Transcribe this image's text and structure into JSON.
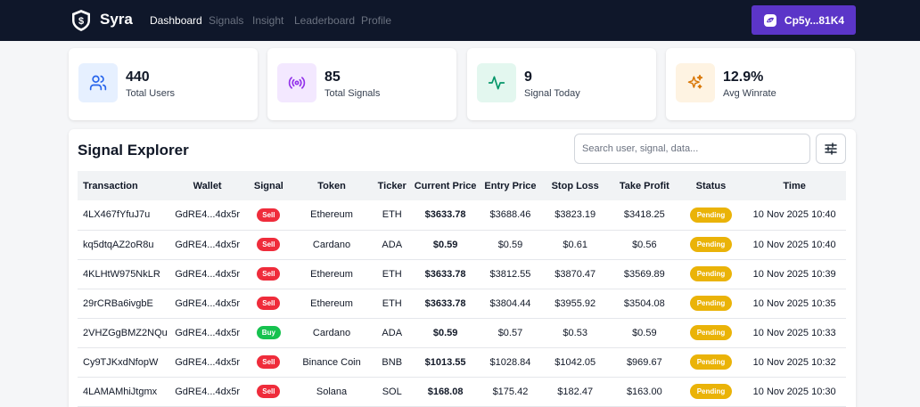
{
  "header": {
    "brand": "Syra",
    "nav": [
      "Dashboard",
      "Signals",
      "Insight",
      "Leaderboard",
      "Profile"
    ],
    "active_nav": "Dashboard",
    "wallet_label": "Cp5y...81K4"
  },
  "stats": [
    {
      "value": "440",
      "label": "Total Users",
      "icon": "users-icon",
      "color": "#2563eb",
      "bg": "#e6f0ff"
    },
    {
      "value": "85",
      "label": "Total Signals",
      "icon": "broadcast-icon",
      "color": "#9333ea",
      "bg": "#f3e8ff"
    },
    {
      "value": "9",
      "label": "Signal Today",
      "icon": "activity-icon",
      "color": "#059669",
      "bg": "#e3f7ef"
    },
    {
      "value": "12.9%",
      "label": "Avg Winrate",
      "icon": "sparkles-icon",
      "color": "#d97706",
      "bg": "#fef3e2"
    }
  ],
  "explorer": {
    "title": "Signal Explorer",
    "search_placeholder": "Search user, signal, data...",
    "columns": [
      "Transaction",
      "Wallet",
      "Signal",
      "Token",
      "Ticker",
      "Current Price",
      "Entry Price",
      "Stop Loss",
      "Take Profit",
      "Status",
      "Time"
    ],
    "rows": [
      {
        "tx": "4LX467fYfuJ7u",
        "wallet": "GdRE4...4dx5r",
        "signal": "Sell",
        "token": "Ethereum",
        "ticker": "ETH",
        "current": "$3633.78",
        "entry": "$3688.46",
        "stop": "$3823.19",
        "take": "$3418.25",
        "status": "Pending",
        "time": "10 Nov 2025 10:40"
      },
      {
        "tx": "kq5dtqAZ2oR8u",
        "wallet": "GdRE4...4dx5r",
        "signal": "Sell",
        "token": "Cardano",
        "ticker": "ADA",
        "current": "$0.59",
        "entry": "$0.59",
        "stop": "$0.61",
        "take": "$0.56",
        "status": "Pending",
        "time": "10 Nov 2025 10:40"
      },
      {
        "tx": "4KLHtW975NkLR",
        "wallet": "GdRE4...4dx5r",
        "signal": "Sell",
        "token": "Ethereum",
        "ticker": "ETH",
        "current": "$3633.78",
        "entry": "$3812.55",
        "stop": "$3870.47",
        "take": "$3569.89",
        "status": "Pending",
        "time": "10 Nov 2025 10:39"
      },
      {
        "tx": "29rCRBa6ivgbE",
        "wallet": "GdRE4...4dx5r",
        "signal": "Sell",
        "token": "Ethereum",
        "ticker": "ETH",
        "current": "$3633.78",
        "entry": "$3804.44",
        "stop": "$3955.92",
        "take": "$3504.08",
        "status": "Pending",
        "time": "10 Nov 2025 10:35"
      },
      {
        "tx": "2VHZGgBMZ2NQu",
        "wallet": "GdRE4...4dx5r",
        "signal": "Buy",
        "token": "Cardano",
        "ticker": "ADA",
        "current": "$0.59",
        "entry": "$0.57",
        "stop": "$0.53",
        "take": "$0.59",
        "status": "Pending",
        "time": "10 Nov 2025 10:33"
      },
      {
        "tx": "Cy9TJKxdNfopW",
        "wallet": "GdRE4...4dx5r",
        "signal": "Sell",
        "token": "Binance Coin",
        "ticker": "BNB",
        "current": "$1013.55",
        "entry": "$1028.84",
        "stop": "$1042.05",
        "take": "$969.67",
        "status": "Pending",
        "time": "10 Nov 2025 10:32"
      },
      {
        "tx": "4LAMAMhiJtgmx",
        "wallet": "GdRE4...4dx5r",
        "signal": "Sell",
        "token": "Solana",
        "ticker": "SOL",
        "current": "$168.08",
        "entry": "$175.42",
        "stop": "$182.47",
        "take": "$163.00",
        "status": "Pending",
        "time": "10 Nov 2025 10:30"
      }
    ]
  }
}
